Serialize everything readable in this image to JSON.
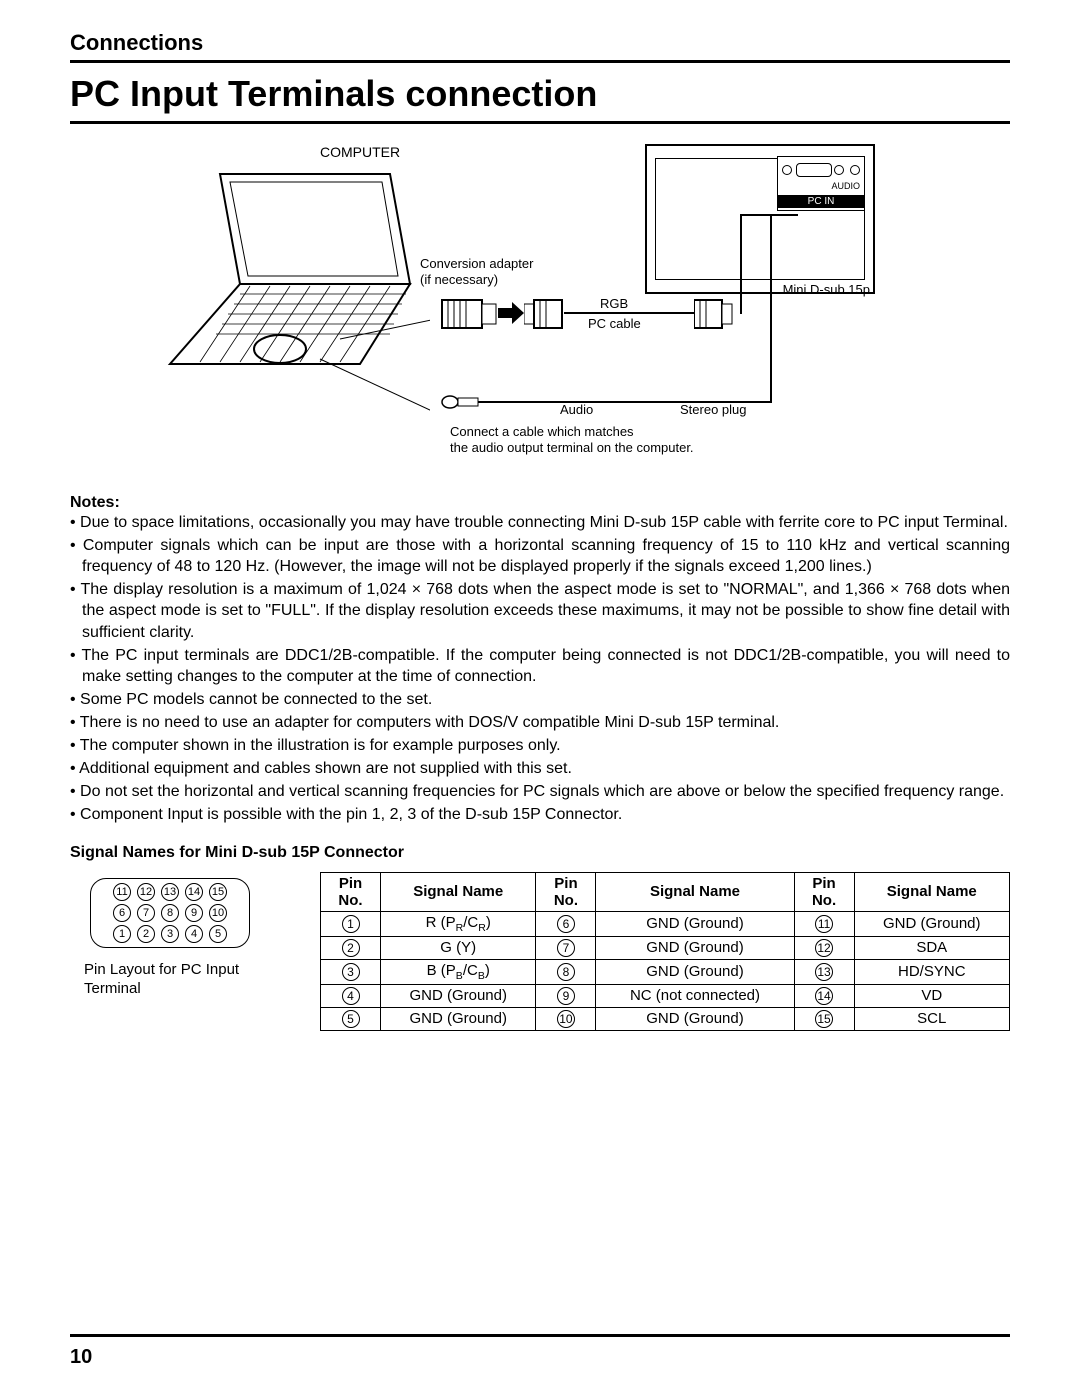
{
  "header": {
    "section": "Connections",
    "title": "PC Input Terminals connection"
  },
  "diagram": {
    "computer": "COMPUTER",
    "conversion": "Conversion adapter\n(if necessary)",
    "rgb": "RGB",
    "pccable": "PC cable",
    "minidsub": "Mini D-sub 15p",
    "audio": "Audio",
    "stereo": "Stereo plug",
    "audionote": "Connect a cable which matches\nthe audio output terminal on the computer.",
    "pcin": {
      "audio": "AUDIO",
      "label": "PC IN"
    }
  },
  "notes": {
    "heading": "Notes:",
    "items": [
      "Due to space limitations, occasionally you may have trouble connecting Mini D-sub 15P cable with ferrite core to PC input Terminal.",
      "Computer signals which can be input are those with a horizontal scanning frequency of 15 to 110 kHz and vertical scanning frequency of 48 to 120 Hz. (However, the image will not be displayed properly if the signals exceed 1,200 lines.)",
      "The display resolution is a maximum of 1,024 × 768 dots when the aspect mode is set to \"NORMAL\", and 1,366 × 768 dots when the aspect mode is set to \"FULL\". If the display resolution exceeds these maximums, it may not be possible to show fine detail with sufficient clarity.",
      "The PC input terminals are DDC1/2B-compatible. If the computer being connected is not DDC1/2B-compatible, you will need to make setting changes to the computer at the time of connection.",
      "Some PC models cannot be connected to the set.",
      "There is no need to use an adapter for computers with DOS/V compatible Mini D-sub 15P terminal.",
      "The computer shown in the illustration is for example purposes only.",
      "Additional equipment and cables shown are not supplied with this set.",
      "Do not set the horizontal and vertical scanning frequencies for PC signals which are above or below the specified frequency range.",
      "Component Input is possible with the pin 1, 2, 3 of the D-sub 15P Connector."
    ]
  },
  "tableHeading": "Signal Names for Mini D-sub 15P Connector",
  "pinCaption": "Pin Layout for PC Input Terminal",
  "pinRows": [
    [
      11,
      12,
      13,
      14,
      15
    ],
    [
      6,
      7,
      8,
      9,
      10
    ],
    [
      1,
      2,
      3,
      4,
      5
    ]
  ],
  "signalTable": {
    "headers": [
      "Pin No.",
      "Signal Name",
      "Pin No.",
      "Signal Name",
      "Pin No.",
      "Signal Name"
    ],
    "rows": [
      {
        "p1": 1,
        "s1": "R (P<sub>R</sub>/C<sub>R</sub>)",
        "p2": 6,
        "s2": "GND (Ground)",
        "p3": 11,
        "s3": "GND (Ground)"
      },
      {
        "p1": 2,
        "s1": "G (Y)",
        "p2": 7,
        "s2": "GND (Ground)",
        "p3": 12,
        "s3": "SDA"
      },
      {
        "p1": 3,
        "s1": "B (P<sub>B</sub>/C<sub>B</sub>)",
        "p2": 8,
        "s2": "GND (Ground)",
        "p3": 13,
        "s3": "HD/SYNC"
      },
      {
        "p1": 4,
        "s1": "GND (Ground)",
        "p2": 9,
        "s2": "NC (not connected)",
        "p3": 14,
        "s3": "VD"
      },
      {
        "p1": 5,
        "s1": "GND (Ground)",
        "p2": 10,
        "s2": "GND (Ground)",
        "p3": 15,
        "s3": "SCL"
      }
    ]
  },
  "pageNumber": "10"
}
